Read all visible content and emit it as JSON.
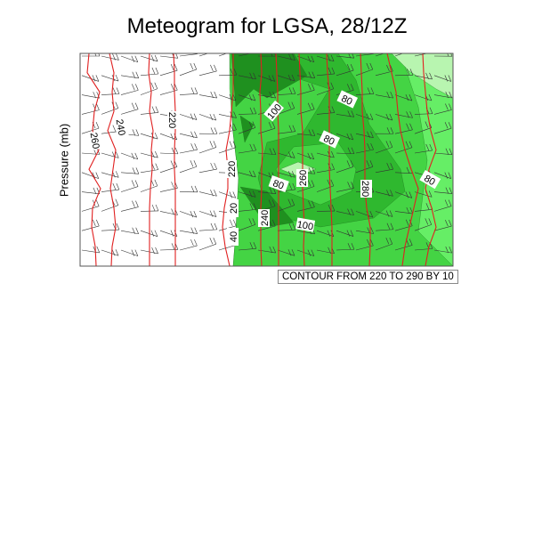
{
  "chart_data": {
    "type": "contour",
    "title": "Meteogram for LGSA, 28/12Z",
    "xlabel": "",
    "ylabel": "Pressure (mb)",
    "info_label": "CONTOUR FROM 220 TO 290 BY 10",
    "line_contours": {
      "color": "#e02020",
      "from": 220,
      "to": 290,
      "by": 10
    },
    "contour_labels": [
      "260",
      "240",
      "220",
      "220",
      "20",
      "40",
      "100",
      "80",
      "80",
      "80",
      "260",
      "240",
      "100",
      "280",
      "80"
    ],
    "fill_colors": [
      "#b8f5b0",
      "#66ee66",
      "#44d444",
      "#2fb82f",
      "#1f901f"
    ],
    "wind_barbs": true,
    "grid": false
  }
}
